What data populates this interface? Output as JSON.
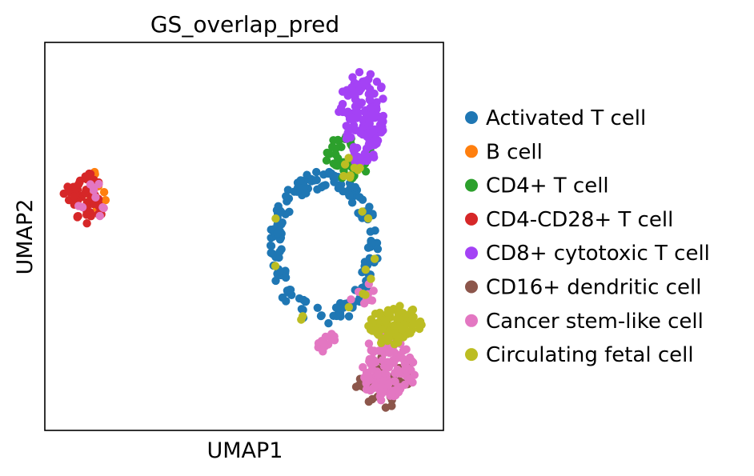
{
  "chart_data": {
    "type": "scatter",
    "title": "GS_overlap_pred",
    "xlabel": "UMAP1",
    "ylabel": "UMAP2",
    "xlim": [
      0,
      100
    ],
    "ylim": [
      0,
      100
    ],
    "grid": false,
    "ticks": false,
    "legend_placement": "right",
    "series": [
      {
        "name": "Activated T cell",
        "color": "#1f77b4",
        "clusters": [
          {
            "cx": 70,
            "cy": 47,
            "rx": 13,
            "ry": 19,
            "n": 170,
            "shape": "ring"
          }
        ]
      },
      {
        "name": "B cell",
        "color": "#ff7f0e",
        "clusters": [
          {
            "cx": 12.5,
            "cy": 61,
            "rx": 3,
            "ry": 6,
            "n": 14,
            "shape": "blob"
          }
        ]
      },
      {
        "name": "CD4+ T cell",
        "color": "#2ca02c",
        "clusters": [
          {
            "cx": 76,
            "cy": 70,
            "rx": 5.5,
            "ry": 6,
            "n": 40,
            "shape": "blob"
          }
        ]
      },
      {
        "name": "CD4-CD28+ T cell",
        "color": "#d62728",
        "clusters": [
          {
            "cx": 10,
            "cy": 60,
            "rx": 5,
            "ry": 6,
            "n": 50,
            "shape": "blob"
          }
        ]
      },
      {
        "name": "CD8+ cytotoxic T cell",
        "color": "#a442f5",
        "clusters": [
          {
            "cx": 80,
            "cy": 81,
            "rx": 5,
            "ry": 12,
            "n": 140,
            "shape": "blob"
          }
        ]
      },
      {
        "name": "CD16+ dendritic cell",
        "color": "#8c564b",
        "clusters": [
          {
            "cx": 85,
            "cy": 12,
            "rx": 7,
            "ry": 6,
            "n": 28,
            "shape": "blob"
          }
        ]
      },
      {
        "name": "Cancer stem-like cell",
        "color": "#e377c2",
        "clusters": [
          {
            "cx": 86,
            "cy": 16,
            "rx": 6,
            "ry": 8,
            "n": 120,
            "shape": "blob"
          },
          {
            "cx": 70.5,
            "cy": 23,
            "rx": 2.4,
            "ry": 3.4,
            "n": 14,
            "shape": "blob"
          },
          {
            "cx": 80,
            "cy": 35,
            "rx": 3,
            "ry": 3,
            "n": 10,
            "shape": "blob"
          },
          {
            "cx": 12.5,
            "cy": 59,
            "rx": 5,
            "ry": 6,
            "n": 10,
            "shape": "blob"
          }
        ]
      },
      {
        "name": "Circulating fetal cell",
        "color": "#bcbd22",
        "clusters": [
          {
            "cx": 88,
            "cy": 27,
            "rx": 6.5,
            "ry": 5,
            "n": 90,
            "shape": "blob"
          },
          {
            "cx": 77,
            "cy": 68,
            "rx": 2.5,
            "ry": 3,
            "n": 8,
            "shape": "blob"
          },
          {
            "cx": 70,
            "cy": 46,
            "rx": 13,
            "ry": 20,
            "n": 12,
            "shape": "ring"
          }
        ]
      }
    ]
  }
}
